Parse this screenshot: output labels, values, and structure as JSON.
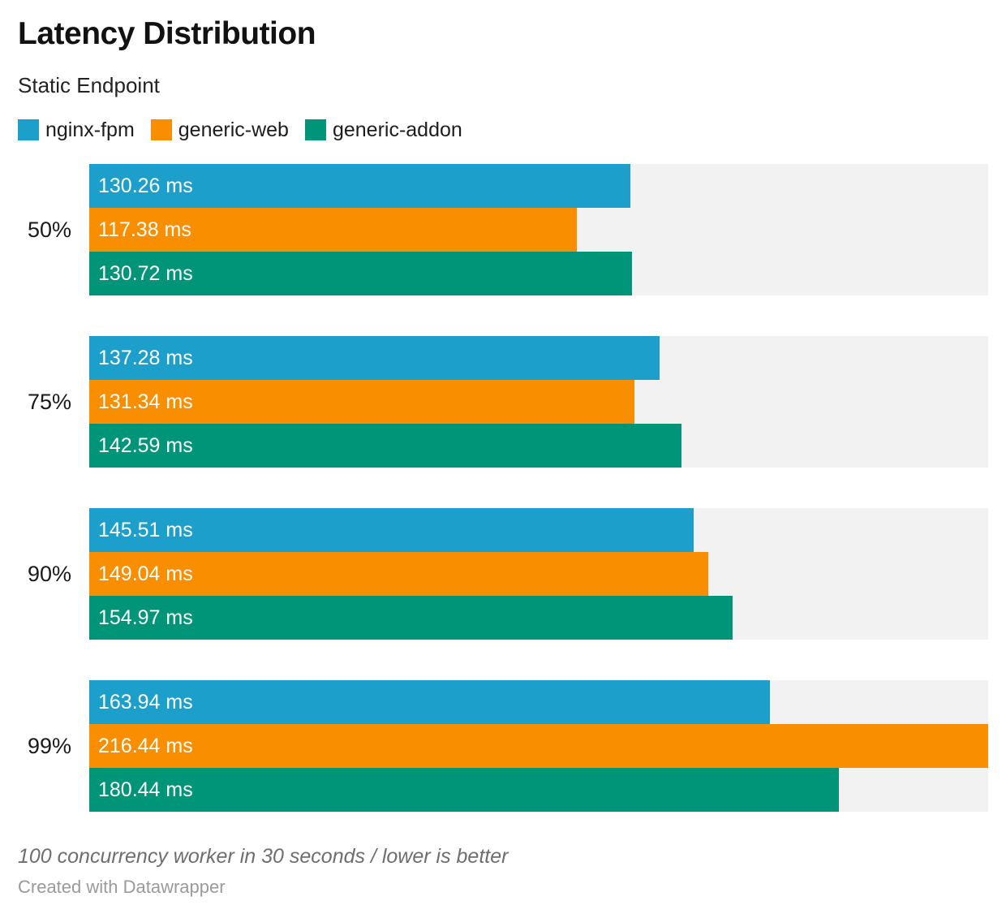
{
  "header": {
    "title": "Latency Distribution",
    "subtitle": "Static Endpoint"
  },
  "legend": {
    "items": [
      {
        "label": "nginx-fpm",
        "color": "#1CA0CB"
      },
      {
        "label": "generic-web",
        "color": "#F98F00"
      },
      {
        "label": "generic-addon",
        "color": "#009478"
      }
    ]
  },
  "chart_data": {
    "type": "bar",
    "orientation": "horizontal",
    "title": "Latency Distribution",
    "subtitle": "Static Endpoint",
    "unit": "ms",
    "value_suffix": " ms",
    "categories": [
      "50%",
      "75%",
      "90%",
      "99%"
    ],
    "series": [
      {
        "name": "nginx-fpm",
        "color": "#1CA0CB",
        "values": [
          130.26,
          137.28,
          145.51,
          163.94
        ]
      },
      {
        "name": "generic-web",
        "color": "#F98F00",
        "values": [
          117.38,
          131.34,
          149.04,
          216.44
        ]
      },
      {
        "name": "generic-addon",
        "color": "#009478",
        "values": [
          130.72,
          142.59,
          154.97,
          180.44
        ]
      }
    ],
    "xlim": [
      0,
      216.44
    ],
    "grid": false,
    "legend_position": "top",
    "value_labels_inside_bars": true,
    "track_color": "#F2F2F2"
  },
  "footer": {
    "note": "100 concurrency worker in 30 seconds / lower is better",
    "credit": "Created with Datawrapper"
  }
}
